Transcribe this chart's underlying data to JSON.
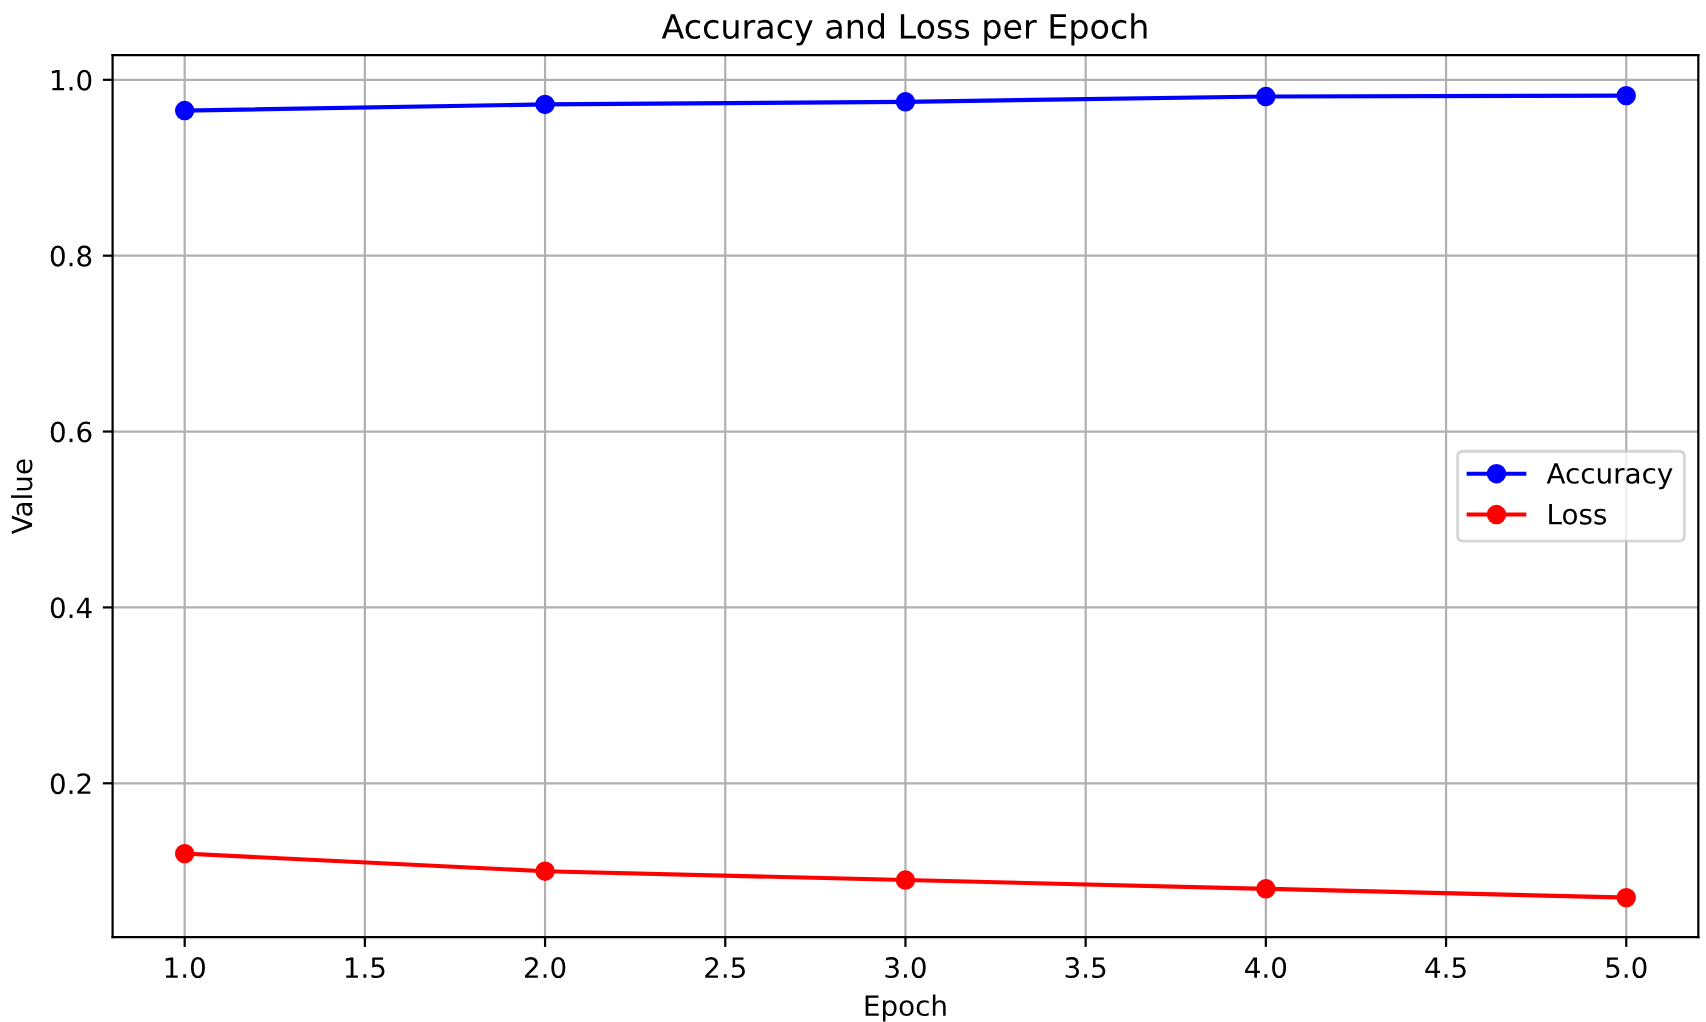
{
  "chart_data": {
    "type": "line",
    "title": "Accuracy and Loss per Epoch",
    "xlabel": "Epoch",
    "ylabel": "Value",
    "x": [
      1,
      2,
      3,
      4,
      5
    ],
    "series": [
      {
        "name": "Accuracy",
        "color": "#0000ff",
        "values": [
          0.965,
          0.972,
          0.975,
          0.981,
          0.982
        ]
      },
      {
        "name": "Loss",
        "color": "#ff0000",
        "values": [
          0.12,
          0.1,
          0.09,
          0.08,
          0.07
        ]
      }
    ],
    "xlim": [
      0.8,
      5.2
    ],
    "ylim": [
      0.025,
      1.028
    ],
    "xticks": [
      {
        "value": 1,
        "label": "1.0"
      },
      {
        "value": 1.5,
        "label": "1.5"
      },
      {
        "value": 2,
        "label": "2.0"
      },
      {
        "value": 2.5,
        "label": "2.5"
      },
      {
        "value": 3,
        "label": "3.0"
      },
      {
        "value": 3.5,
        "label": "3.5"
      },
      {
        "value": 4,
        "label": "4.0"
      },
      {
        "value": 4.5,
        "label": "4.5"
      },
      {
        "value": 5,
        "label": "5.0"
      }
    ],
    "yticks": [
      0.2,
      0.4,
      0.6,
      0.8,
      {
        "value": 1.0,
        "label": "1.0"
      }
    ],
    "grid": true,
    "legend": "right",
    "marker": "circle",
    "line_style": "solid"
  }
}
